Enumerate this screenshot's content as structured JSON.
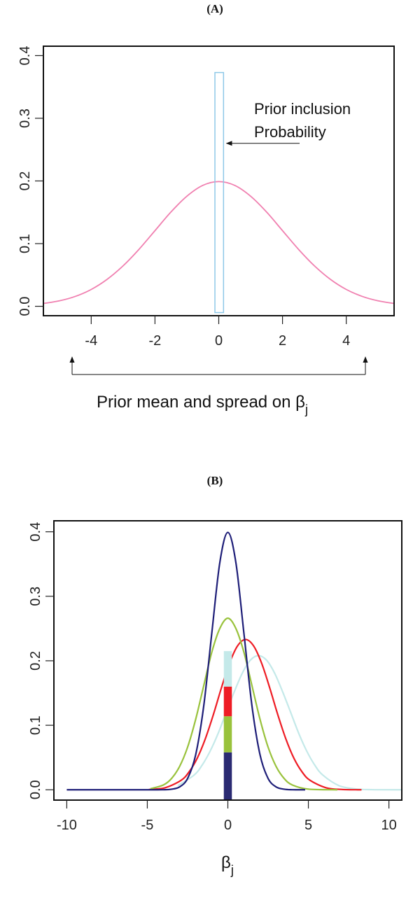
{
  "chart_data": [
    {
      "type": "line",
      "title": "(A)",
      "xlabel": "Prior mean and spread on β",
      "xlabel_subscript": "j",
      "xlim": [
        -5.5,
        5.5
      ],
      "ylim": [
        -0.015,
        0.415
      ],
      "xticks": [
        -4,
        -2,
        0,
        2,
        4
      ],
      "yticks": [
        "0.0",
        "0.1",
        "0.2",
        "0.3",
        "0.4"
      ],
      "grid": false,
      "annotation": {
        "line1": "Prior inclusion",
        "line2": "Probability",
        "points_to_x": 0.2,
        "points_to_y": 0.26
      },
      "range_bracket": [
        -4.6,
        4.6
      ],
      "series": [
        {
          "color": "#f080b0",
          "x": [
            -5.5,
            -5,
            -4.5,
            -4,
            -3.5,
            -3,
            -2.5,
            -2,
            -1.5,
            -1,
            -0.5,
            0,
            0.5,
            1,
            1.5,
            2,
            2.5,
            3,
            3.5,
            4,
            4.5,
            5,
            5.5
          ],
          "y": [
            0.0045,
            0.0087,
            0.0158,
            0.0269,
            0.0431,
            0.0646,
            0.091,
            0.1207,
            0.1504,
            0.1756,
            0.1929,
            0.199,
            0.1929,
            0.1756,
            0.1504,
            0.1207,
            0.091,
            0.0646,
            0.0431,
            0.0269,
            0.0158,
            0.0087,
            0.0045
          ]
        }
      ],
      "inclusion_bar": {
        "x0": -0.12,
        "x1": 0.15,
        "y0": -0.01,
        "y1": 0.373,
        "color": "#8ec8e8"
      }
    },
    {
      "type": "line",
      "title": "(B)",
      "xlabel": "β",
      "xlabel_subscript": "j",
      "xlim": [
        -10.8,
        10.8
      ],
      "ylim": [
        -0.016,
        0.417
      ],
      "xticks": [
        -10,
        -5,
        0,
        5,
        10
      ],
      "yticks": [
        "0.0",
        "0.1",
        "0.2",
        "0.3",
        "0.4"
      ],
      "grid": false,
      "series": [
        {
          "color": "#c4e9e9",
          "x": [
            -3.1,
            -2.1,
            -1.6,
            -1.1,
            -0.6,
            -0.1,
            0.4,
            0.9,
            1.4,
            1.9,
            2.4,
            2.9,
            3.4,
            3.9,
            4.4,
            4.9,
            5.4,
            5.9,
            6.9,
            7.9,
            8.9,
            10.8
          ],
          "y": [
            0.0064,
            0.0227,
            0.0381,
            0.0599,
            0.0876,
            0.12,
            0.152,
            0.181,
            0.201,
            0.208,
            0.201,
            0.181,
            0.152,
            0.12,
            0.0876,
            0.0599,
            0.0381,
            0.0227,
            0.0064,
            0.0014,
            0.0002,
            0
          ]
        },
        {
          "color": "#ee1c24",
          "x": [
            -4.9,
            -3.9,
            -2.9,
            -2.4,
            -1.9,
            -1.4,
            -0.9,
            -0.4,
            0.1,
            0.6,
            1.1,
            1.6,
            2.1,
            2.6,
            3.1,
            3.6,
            4.1,
            4.6,
            5.1,
            6.1,
            7.1,
            8.3
          ],
          "y": [
            0.0005,
            0.0031,
            0.0147,
            0.028,
            0.049,
            0.079,
            0.1165,
            0.158,
            0.196,
            0.223,
            0.233,
            0.223,
            0.196,
            0.158,
            0.1165,
            0.079,
            0.049,
            0.028,
            0.0147,
            0.0031,
            0.0005,
            0
          ]
        },
        {
          "color": "#99c23c",
          "x": [
            -4.8,
            -4,
            -3.5,
            -3,
            -2.5,
            -2,
            -1.5,
            -1,
            -0.5,
            0,
            0.5,
            1,
            1.5,
            2,
            2.5,
            3,
            3.5,
            4,
            5,
            6.8
          ],
          "y": [
            0.0016,
            0.0075,
            0.0174,
            0.036,
            0.066,
            0.109,
            0.161,
            0.213,
            0.25,
            0.266,
            0.25,
            0.213,
            0.161,
            0.109,
            0.066,
            0.036,
            0.0174,
            0.0075,
            0.001,
            0
          ]
        },
        {
          "color": "#1e1e78",
          "x": [
            -10,
            -5,
            -4,
            -3.5,
            -3,
            -2.5,
            -2,
            -1.5,
            -1,
            -0.5,
            0,
            0.5,
            1,
            1.5,
            2,
            2.5,
            3,
            3.5,
            4,
            4.8
          ],
          "y": [
            0,
            0,
            0.0001,
            0.0009,
            0.0044,
            0.0175,
            0.054,
            0.1295,
            0.242,
            0.352,
            0.399,
            0.352,
            0.242,
            0.1295,
            0.054,
            0.0175,
            0.0044,
            0.0009,
            0.0001,
            0
          ]
        }
      ],
      "stacked_bar": {
        "x0": -0.25,
        "x1": 0.25,
        "segments": [
          {
            "from": -0.016,
            "to": 0.058,
            "color": "#2a2a72"
          },
          {
            "from": 0.058,
            "to": 0.114,
            "color": "#99c23c"
          },
          {
            "from": 0.114,
            "to": 0.16,
            "color": "#ee1c24"
          },
          {
            "from": 0.16,
            "to": 0.215,
            "color": "#c4e9e9"
          }
        ]
      }
    }
  ]
}
